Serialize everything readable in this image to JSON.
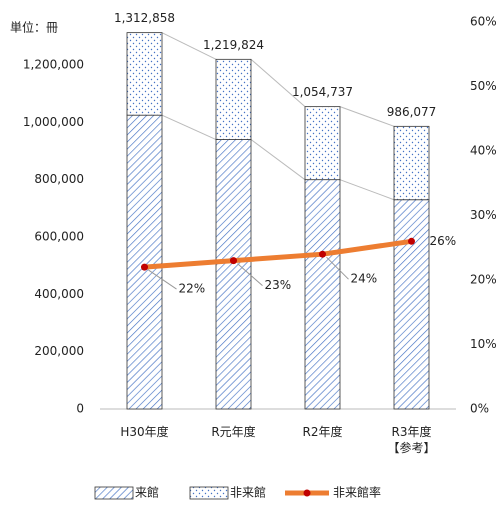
{
  "chart_data": {
    "type": "bar",
    "stacked": true,
    "unit_label": "単位：冊",
    "categories": [
      "H30年度",
      "R元年度",
      "R2年度",
      "R3年度\n【参考】"
    ],
    "series": [
      {
        "name": "来館",
        "color": "#4472c4",
        "pattern": "hatch",
        "values": [
          1025000,
          940000,
          800000,
          730000
        ]
      },
      {
        "name": "非来館",
        "color": "#4472c4",
        "pattern": "dots",
        "values": [
          287858,
          279824,
          254737,
          256077
        ]
      },
      {
        "name": "非来館率",
        "type": "line",
        "axis": "y2",
        "color": "#ed7d31",
        "marker_color": "#c00000",
        "values": [
          22,
          23,
          24,
          26
        ],
        "value_labels": [
          "22%",
          "23%",
          "24%",
          "26%"
        ]
      }
    ],
    "totals": [
      1312858,
      1219824,
      1054737,
      986077
    ],
    "total_labels": [
      "1,312,858",
      "1,219,824",
      "1,054,737",
      "986,077"
    ],
    "ylim": [
      0,
      1350000
    ],
    "yticks": [
      0,
      {
        "value": 200000,
        "label": "200,000"
      },
      {
        "value": 400000,
        "label": "400,000"
      },
      {
        "value": 600000,
        "label": "600,000"
      },
      {
        "value": 800000,
        "label": "800,000"
      },
      {
        "value": 1000000,
        "label": "1,000,000"
      },
      {
        "value": 1200000,
        "label": "1,200,000"
      }
    ],
    "y2lim": [
      0,
      60
    ],
    "y2ticks": [
      {
        "value": 0,
        "label": "0%"
      },
      {
        "value": 10,
        "label": "10%"
      },
      {
        "value": 20,
        "label": "20%"
      },
      {
        "value": 30,
        "label": "30%"
      },
      {
        "value": 40,
        "label": "40%"
      },
      {
        "value": 50,
        "label": "50%"
      },
      {
        "value": 60,
        "label": "60%"
      }
    ]
  }
}
